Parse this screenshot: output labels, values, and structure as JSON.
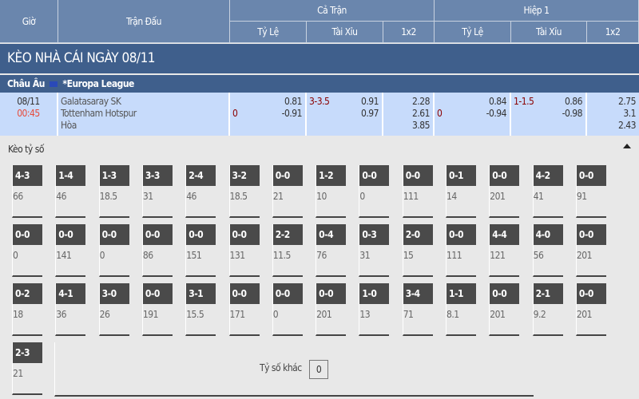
{
  "header": {
    "gio": "Giờ",
    "tran_dau": "Trận Đấu",
    "ca_tran": "Cả Trận",
    "hiep1": "Hiệp 1",
    "ty_le": "Tỷ Lệ",
    "tai_xiu": "Tài Xỉu",
    "x12": "1x2"
  },
  "title": "KÈO NHÀ CÁI NGÀY 08/11",
  "league": {
    "region": "Châu Âu",
    "name": "*Europa League",
    "flag_icon": "eu-flag-icon"
  },
  "match": {
    "date": "08/11",
    "time": "00:45",
    "home": "Galatasaray SK",
    "away": "Tottenham Hotspur",
    "draw": "Hòa",
    "ft": {
      "hdp_line": "0",
      "hdp_home": "0.81",
      "hdp_away": "-0.91",
      "ou_line": "3-3.5",
      "ou_over": "0.91",
      "ou_under": "0.97",
      "x1": "2.28",
      "x2": "2.61",
      "xd": "3.85"
    },
    "h1": {
      "hdp_line": "0",
      "hdp_home": "0.84",
      "hdp_away": "-0.94",
      "ou_line": "1-1.5",
      "ou_over": "0.86",
      "ou_under": "-0.98",
      "x1": "2.75",
      "x2": "3.1",
      "xd": "2.43"
    }
  },
  "correct_score": {
    "label": "Kèo tỷ số",
    "toggle_icon": "triangle-up-icon",
    "cells": [
      [
        "4-3",
        "66"
      ],
      [
        "1-4",
        "46"
      ],
      [
        "1-3",
        "18.5"
      ],
      [
        "3-3",
        "31"
      ],
      [
        "2-4",
        "46"
      ],
      [
        "3-2",
        "18.5"
      ],
      [
        "0-0",
        "21"
      ],
      [
        "1-2",
        "10"
      ],
      [
        "0-0",
        "0"
      ],
      [
        "0-0",
        "111"
      ],
      [
        "0-1",
        "14"
      ],
      [
        "0-0",
        "201"
      ],
      [
        "4-2",
        "41"
      ],
      [
        "0-0",
        "91"
      ],
      [
        "0-0",
        "0"
      ],
      [
        "0-0",
        "141"
      ],
      [
        "0-0",
        "0"
      ],
      [
        "0-0",
        "86"
      ],
      [
        "0-0",
        "151"
      ],
      [
        "0-0",
        "131"
      ],
      [
        "2-2",
        "11.5"
      ],
      [
        "0-4",
        "76"
      ],
      [
        "0-3",
        "31"
      ],
      [
        "2-0",
        "15"
      ],
      [
        "0-0",
        "111"
      ],
      [
        "4-4",
        "121"
      ],
      [
        "4-0",
        "56"
      ],
      [
        "0-0",
        "201"
      ],
      [
        "0-2",
        "18"
      ],
      [
        "4-1",
        "36"
      ],
      [
        "3-0",
        "26"
      ],
      [
        "0-0",
        "191"
      ],
      [
        "3-1",
        "15.5"
      ],
      [
        "0-0",
        "171"
      ],
      [
        "0-0",
        "0"
      ],
      [
        "0-0",
        "201"
      ],
      [
        "1-0",
        "13"
      ],
      [
        "3-4",
        "71"
      ],
      [
        "1-1",
        "8.1"
      ],
      [
        "0-0",
        "201"
      ],
      [
        "2-1",
        "9.2"
      ],
      [
        "0-0",
        "201"
      ],
      [
        "2-3",
        "21"
      ]
    ],
    "other_label": "Tỷ số khác",
    "other_value": "0"
  }
}
